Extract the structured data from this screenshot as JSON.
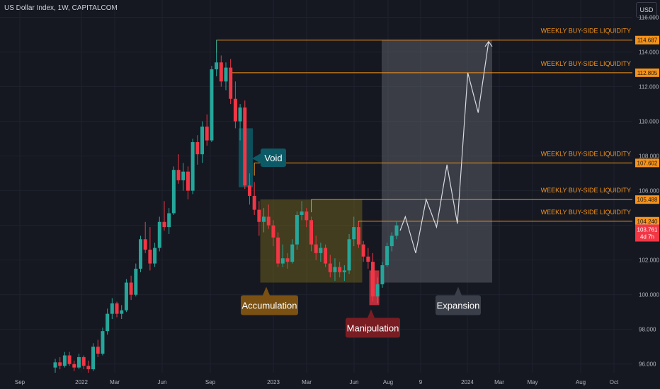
{
  "header": {
    "title": "US Dollar Index, 1W, CAPITALCOM"
  },
  "currency": "USD",
  "colors": {
    "background": "#151821",
    "up": "#26a69a",
    "down": "#f23645",
    "liquidity": "#f7931a",
    "grid": "#1e222d",
    "axis_text": "#b2b5be",
    "accumulation_box": "#7a6a1a",
    "expansion_box": "#5a5d66",
    "void_box": "#0c5a66",
    "manipulation_label": "#7a1d23",
    "accumulation_label": "#7a5112",
    "expansion_label": "#3a3e48"
  },
  "chart_data": {
    "type": "candlestick",
    "interval": "1W",
    "y_axis": {
      "ticks": [
        96,
        98,
        100,
        102,
        104,
        106,
        108,
        110,
        112,
        114,
        116
      ],
      "tick_labels": [
        "96.000",
        "98.000",
        "100.000",
        "102.000",
        "104.000",
        "106.000",
        "108.000",
        "110.000",
        "112.000",
        "114.000",
        "116.000"
      ],
      "range": [
        95.5,
        117
      ]
    },
    "x_axis": {
      "tick_labels": [
        "Sep",
        "2022",
        "Mar",
        "Jun",
        "Sep",
        "2023",
        "Mar",
        "Jun",
        "Aug",
        "9",
        "2024",
        "Mar",
        "May",
        "Aug",
        "Oct"
      ]
    },
    "current_price": {
      "label": "103.761",
      "countdown": "4d 7h"
    },
    "candles_ohlc": [
      [
        95.8,
        96.3,
        95.5,
        96.1
      ],
      [
        96.1,
        96.4,
        95.7,
        95.9
      ],
      [
        95.9,
        96.7,
        95.8,
        96.5
      ],
      [
        96.5,
        96.7,
        95.9,
        96.0
      ],
      [
        96.0,
        96.2,
        95.6,
        95.8
      ],
      [
        95.8,
        96.6,
        95.7,
        96.4
      ],
      [
        96.4,
        96.5,
        95.7,
        95.9
      ],
      [
        95.9,
        96.2,
        95.5,
        95.7
      ],
      [
        95.7,
        97.2,
        95.6,
        97.0
      ],
      [
        97.0,
        97.4,
        96.4,
        96.6
      ],
      [
        96.6,
        98.1,
        96.5,
        97.9
      ],
      [
        97.9,
        99.2,
        97.7,
        98.9
      ],
      [
        98.9,
        99.8,
        98.6,
        99.5
      ],
      [
        99.5,
        99.6,
        98.7,
        98.9
      ],
      [
        98.9,
        99.4,
        98.6,
        99.1
      ],
      [
        99.1,
        100.9,
        99.0,
        100.7
      ],
      [
        100.7,
        101.1,
        99.7,
        100.0
      ],
      [
        100.0,
        101.8,
        99.9,
        101.5
      ],
      [
        101.5,
        103.4,
        101.3,
        103.2
      ],
      [
        103.2,
        104.2,
        102.4,
        102.6
      ],
      [
        102.6,
        103.9,
        101.4,
        101.8
      ],
      [
        101.8,
        103.0,
        101.6,
        102.7
      ],
      [
        102.7,
        104.5,
        102.5,
        104.2
      ],
      [
        104.2,
        105.4,
        103.7,
        103.9
      ],
      [
        103.9,
        105.0,
        103.5,
        104.7
      ],
      [
        104.7,
        107.4,
        104.6,
        107.2
      ],
      [
        107.2,
        108.1,
        106.4,
        106.6
      ],
      [
        106.6,
        107.6,
        106.0,
        107.1
      ],
      [
        107.1,
        107.4,
        105.5,
        106.0
      ],
      [
        106.0,
        109.0,
        105.8,
        108.8
      ],
      [
        108.8,
        109.2,
        107.5,
        108.1
      ],
      [
        108.1,
        110.0,
        107.6,
        109.7
      ],
      [
        109.7,
        110.4,
        108.6,
        108.9
      ],
      [
        108.9,
        113.2,
        108.8,
        113.0
      ],
      [
        113.0,
        114.7,
        112.6,
        113.4
      ],
      [
        113.4,
        113.8,
        112.0,
        112.3
      ],
      [
        112.3,
        113.4,
        111.8,
        113.1
      ],
      [
        113.1,
        113.6,
        111.0,
        111.3
      ],
      [
        111.3,
        112.3,
        109.6,
        110.0
      ],
      [
        110.0,
        111.0,
        108.9,
        110.8
      ],
      [
        110.8,
        111.2,
        106.1,
        106.3
      ],
      [
        106.3,
        107.0,
        105.2,
        105.7
      ],
      [
        105.7,
        106.5,
        104.6,
        104.9
      ],
      [
        104.9,
        105.4,
        103.4,
        104.2
      ],
      [
        104.2,
        105.0,
        103.6,
        104.5
      ],
      [
        104.5,
        105.2,
        103.8,
        104.0
      ],
      [
        104.0,
        104.3,
        102.8,
        103.3
      ],
      [
        103.3,
        103.6,
        101.6,
        101.8
      ],
      [
        101.8,
        102.9,
        101.6,
        102.1
      ],
      [
        102.1,
        102.4,
        101.5,
        101.9
      ],
      [
        101.9,
        103.2,
        101.8,
        102.9
      ],
      [
        102.9,
        104.8,
        102.6,
        104.6
      ],
      [
        104.6,
        105.4,
        104.3,
        104.8
      ],
      [
        104.8,
        105.0,
        103.9,
        104.3
      ],
      [
        104.3,
        104.5,
        102.5,
        102.9
      ],
      [
        102.9,
        103.4,
        102.0,
        102.4
      ],
      [
        102.4,
        103.0,
        101.9,
        102.7
      ],
      [
        102.7,
        102.9,
        101.6,
        101.8
      ],
      [
        101.8,
        102.3,
        101.0,
        101.3
      ],
      [
        101.3,
        102.1,
        100.8,
        101.6
      ],
      [
        101.6,
        101.9,
        101.0,
        101.3
      ],
      [
        101.3,
        101.7,
        100.8,
        101.4
      ],
      [
        101.4,
        103.5,
        101.2,
        103.2
      ],
      [
        103.2,
        104.5,
        102.8,
        103.9
      ],
      [
        103.9,
        104.2,
        102.7,
        102.9
      ],
      [
        102.9,
        103.1,
        101.9,
        102.2
      ],
      [
        102.2,
        102.7,
        101.5,
        101.9
      ],
      [
        101.9,
        102.4,
        99.6,
        99.9
      ],
      [
        99.9,
        101.0,
        99.5,
        100.6
      ],
      [
        100.6,
        101.9,
        100.4,
        101.7
      ],
      [
        101.7,
        103.0,
        101.6,
        102.8
      ],
      [
        102.8,
        103.6,
        102.5,
        103.4
      ],
      [
        103.4,
        104.2,
        103.2,
        104.0
      ]
    ],
    "projection_path": [
      [
        103.7,
        0
      ],
      [
        104.5,
        1
      ],
      [
        102.4,
        3
      ],
      [
        105.5,
        5
      ],
      [
        103.9,
        7
      ],
      [
        107.5,
        9
      ],
      [
        104.1,
        11
      ],
      [
        112.8,
        13
      ],
      [
        110.5,
        15
      ],
      [
        114.6,
        17
      ]
    ],
    "liquidity_levels": [
      {
        "label": "WEEKLY BUY-SIDE LIQUIDITY",
        "price": 114.687,
        "tag": "114.687"
      },
      {
        "label": "WEEKLY BUY-SIDE LIQUIDITY",
        "price": 112.805,
        "tag": "112.805"
      },
      {
        "label": "WEEKLY BUY-SIDE LIQUIDITY",
        "price": 107.602,
        "tag": "107.602"
      },
      {
        "label": "WEEKLY BUY-SIDE LIQUIDITY",
        "price": 105.488,
        "tag": "105.488"
      },
      {
        "label": "WEEKLY BUY-SIDE LIQUIDITY",
        "price": 104.24,
        "tag": "104.240"
      }
    ],
    "zones": {
      "void": {
        "label": "Void",
        "top": 109.6,
        "bottom": 106.2
      },
      "accumulation": {
        "label": "Accumulation",
        "top": 105.5,
        "bottom": 100.7
      },
      "expansion": {
        "label": "Expansion",
        "top": 114.687,
        "bottom": 100.7
      },
      "manipulation": {
        "label": "Manipulation",
        "top": 101.4,
        "bottom": 99.4
      }
    }
  }
}
